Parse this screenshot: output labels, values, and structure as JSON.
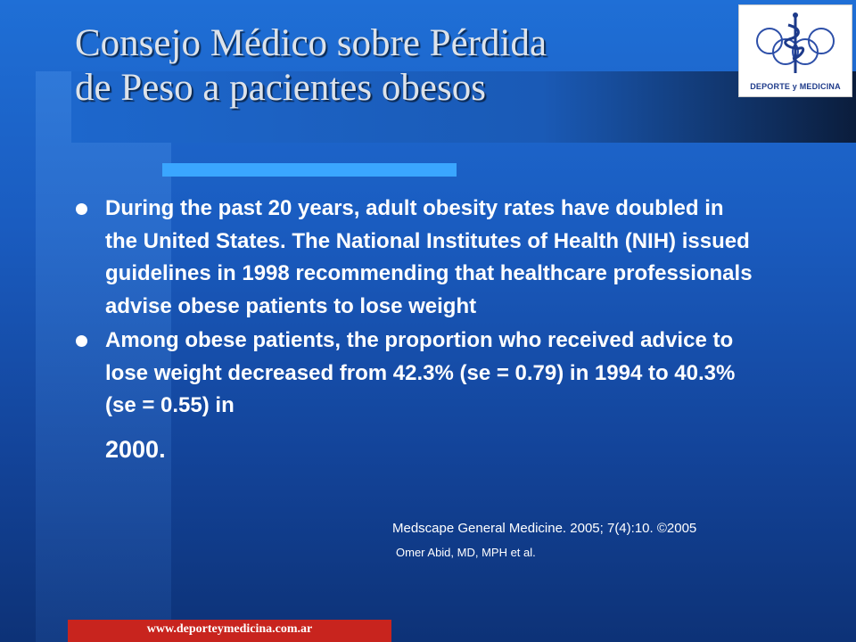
{
  "slide": {
    "title_line1": "Consejo Médico sobre Pérdida",
    "title_line2": "de Peso a pacientes obesos",
    "logo_text": "DEPORTE y MEDICINA",
    "bullets": [
      {
        "text": "During the past 20 years, adult obesity rates have doubled in the United States. The National Institutes of Health (NIH) issued guidelines in 1998 recommending that healthcare professionals advise obese patients to lose weight"
      },
      {
        "text": "Among obese patients, the proportion who received advice to lose weight decreased from 42.3% (se = 0.79) in 1994 to 40.3% (se = 0.55) in",
        "last": "2000."
      }
    ],
    "citation_line1": "Medscape General Medicine. 2005; 7(4):10. ©2005",
    "citation_line2": "Omer Abid, MD, MPH et al.",
    "footer_url": "www.deporteymedicina.com.ar",
    "colors": {
      "accent": "#3aa6ff",
      "footer": "#c8241e",
      "background": "#1a5cc0"
    },
    "icons": {
      "bullet": "filled-circle",
      "logo": "caduceus-rings-logo"
    }
  }
}
